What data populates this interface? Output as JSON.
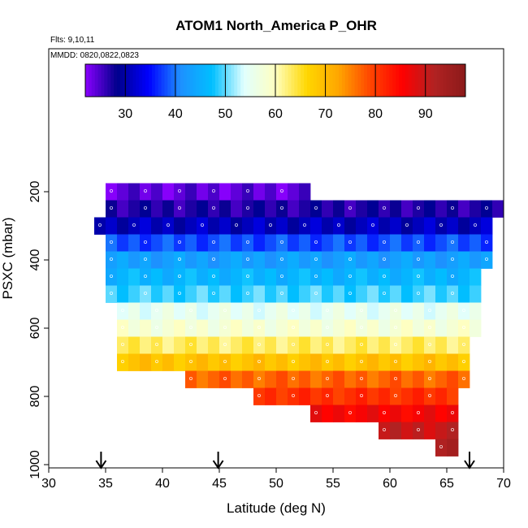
{
  "chart_data": {
    "type": "heatmap",
    "title": "ATOM1 North_America P_OHR",
    "subtitle_flights": "Flts: 9,10,11",
    "subtitle_dates": "MMDD: 0820,0822,0823",
    "xlabel": "Latitude (deg N)",
    "ylabel": "PSXC (mbar)",
    "xlim": [
      30,
      70
    ],
    "ylim": [
      1000,
      0
    ],
    "x_ticks": [
      "30",
      "35",
      "40",
      "45",
      "50",
      "55",
      "60",
      "65",
      "70"
    ],
    "x_tick_values": [
      30,
      35,
      40,
      45,
      50,
      55,
      60,
      65,
      70
    ],
    "y_ticks": [
      "200",
      "400",
      "600",
      "800",
      "1000"
    ],
    "y_tick_values": [
      200,
      400,
      600,
      800,
      1000
    ],
    "colorbar": {
      "range": [
        22,
        98
      ],
      "tick_labels": [
        "30",
        "40",
        "50",
        "60",
        "70",
        "80",
        "90"
      ],
      "tick_values": [
        30,
        40,
        50,
        60,
        70,
        80,
        90
      ],
      "colors": [
        "#8B00FF",
        "#00008B",
        "#0000FF",
        "#1E90FF",
        "#00BFFF",
        "#E0FFFF",
        "#FFFFC0",
        "#FFD700",
        "#FFA500",
        "#FF4500",
        "#FF0000",
        "#B22222",
        "#8B1A1A"
      ]
    },
    "rows": [
      {
        "pressure": 200,
        "lat_range": [
          35,
          53
        ],
        "value": 24
      },
      {
        "pressure": 250,
        "lat_range": [
          35,
          70
        ],
        "value": 27
      },
      {
        "pressure": 300,
        "lat_range": [
          34,
          69
        ],
        "value": 31
      },
      {
        "pressure": 350,
        "lat_range": [
          35,
          69
        ],
        "value": 38
      },
      {
        "pressure": 400,
        "lat_range": [
          35,
          69
        ],
        "value": 43
      },
      {
        "pressure": 450,
        "lat_range": [
          35,
          68
        ],
        "value": 46
      },
      {
        "pressure": 500,
        "lat_range": [
          35,
          68
        ],
        "value": 49
      },
      {
        "pressure": 550,
        "lat_range": [
          36,
          68
        ],
        "value": 55
      },
      {
        "pressure": 600,
        "lat_range": [
          36,
          68
        ],
        "value": 58
      },
      {
        "pressure": 650,
        "lat_range": [
          36,
          67
        ],
        "value": 63
      },
      {
        "pressure": 700,
        "lat_range": [
          36,
          67
        ],
        "value": 69
      },
      {
        "pressure": 750,
        "lat_range": [
          42,
          67
        ],
        "value": 77
      },
      {
        "pressure": 800,
        "lat_range": [
          48,
          66
        ],
        "value": 81
      },
      {
        "pressure": 850,
        "lat_range": [
          53,
          66
        ],
        "value": 86
      },
      {
        "pressure": 900,
        "lat_range": [
          59,
          66
        ],
        "value": 90
      },
      {
        "pressure": 950,
        "lat_range": [
          64,
          66
        ],
        "value": 94
      }
    ],
    "arrows_lat": [
      34.6,
      44.9,
      67.0
    ],
    "grid": false,
    "legend": "top-colorbar"
  }
}
